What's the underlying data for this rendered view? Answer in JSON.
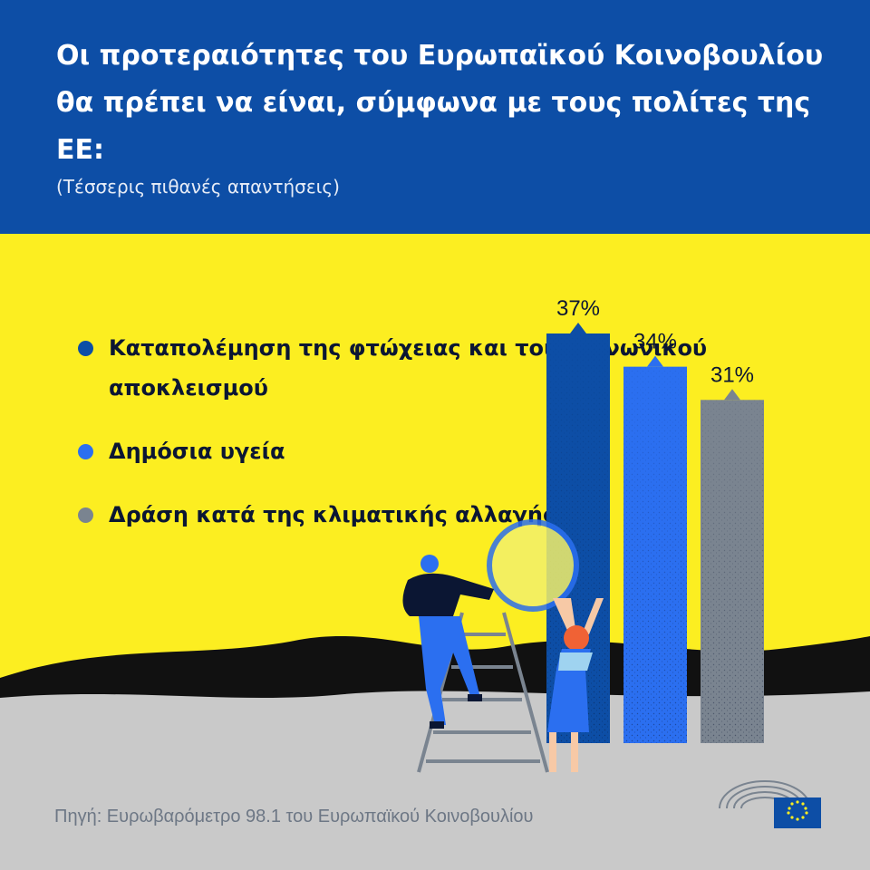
{
  "header": {
    "title": "Οι προτεραιότητες του Ευρωπαϊκού Κοινοβουλίου θα πρέπει να είναι, σύμφωνα με τους πολίτες της ΕΕ:",
    "subtitle": "(Τέσσερις πιθανές απαντήσεις)"
  },
  "legend": [
    {
      "label": "Καταπολέμηση της φτώχειας και του κοινωνικού αποκλεισμού",
      "color": "#0d4ea6"
    },
    {
      "label": "Δημόσια υγεία",
      "color": "#2b6ff0"
    },
    {
      "label": "Δράση κατά της κλιματικής αλλαγής",
      "color": "#7a8490"
    }
  ],
  "chart_data": {
    "type": "bar",
    "categories": [
      "Καταπολέμηση της φτώχειας και του κοινωνικού αποκλεισμού",
      "Δημόσια υγεία",
      "Δράση κατά της κλιματικής αλλαγής"
    ],
    "values": [
      37,
      34,
      31
    ],
    "value_labels": [
      "37%",
      "34%",
      "31%"
    ],
    "colors": [
      "#0d4ea6",
      "#2b6ff0",
      "#7a8490"
    ],
    "title": "",
    "xlabel": "",
    "ylabel": "",
    "ylim": [
      0,
      37
    ],
    "grid": false,
    "legend_position": "left"
  },
  "colors": {
    "header": "#0d4ea6",
    "panel": "#fcee21",
    "ground": "#c9c9c9",
    "horizon": "#111111"
  },
  "illustration": "people-lifting-moon-icon",
  "footer": {
    "source": "Πηγή: Ευρωβαρόμετρο 98.1 του Ευρωπαϊκού Κοινοβουλίου",
    "logo": "european-parliament-logo-icon"
  }
}
